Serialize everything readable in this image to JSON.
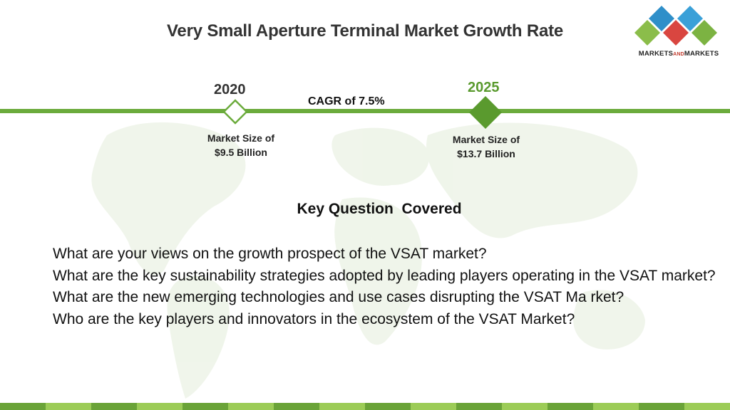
{
  "title": "Very Small Aperture Terminal Market Growth Rate",
  "logo": {
    "part1": "MARKETS",
    "part2": "AND",
    "part3": "MARKETS"
  },
  "timeline": {
    "start": {
      "year": "2020",
      "market_size_line1": "Market Size of",
      "market_size_line2": "$9.5 Billion"
    },
    "end": {
      "year": "2025",
      "market_size_line1": "Market Size of",
      "market_size_line2": "$13.7 Billion"
    },
    "cagr": "CAGR of 7.5%"
  },
  "key_questions": {
    "title": "Key Question  Covered",
    "items": [
      "What are your views on the growth prospect of the VSAT market?",
      "What are the key sustainability strategies adopted by leading players operating in the VSAT market?",
      "What are the new emerging technologies and use cases disrupting the VSAT Ma rket?",
      "Who are the key players and innovators in the ecosystem of the VSAT Market?"
    ]
  },
  "colors": {
    "green_primary": "#6bab3c",
    "green_dark": "#5a9a2e",
    "green_light": "#9ccc57",
    "logo_blue": "#2f8fc9",
    "logo_red": "#d94640",
    "logo_green": "#7cb342"
  }
}
